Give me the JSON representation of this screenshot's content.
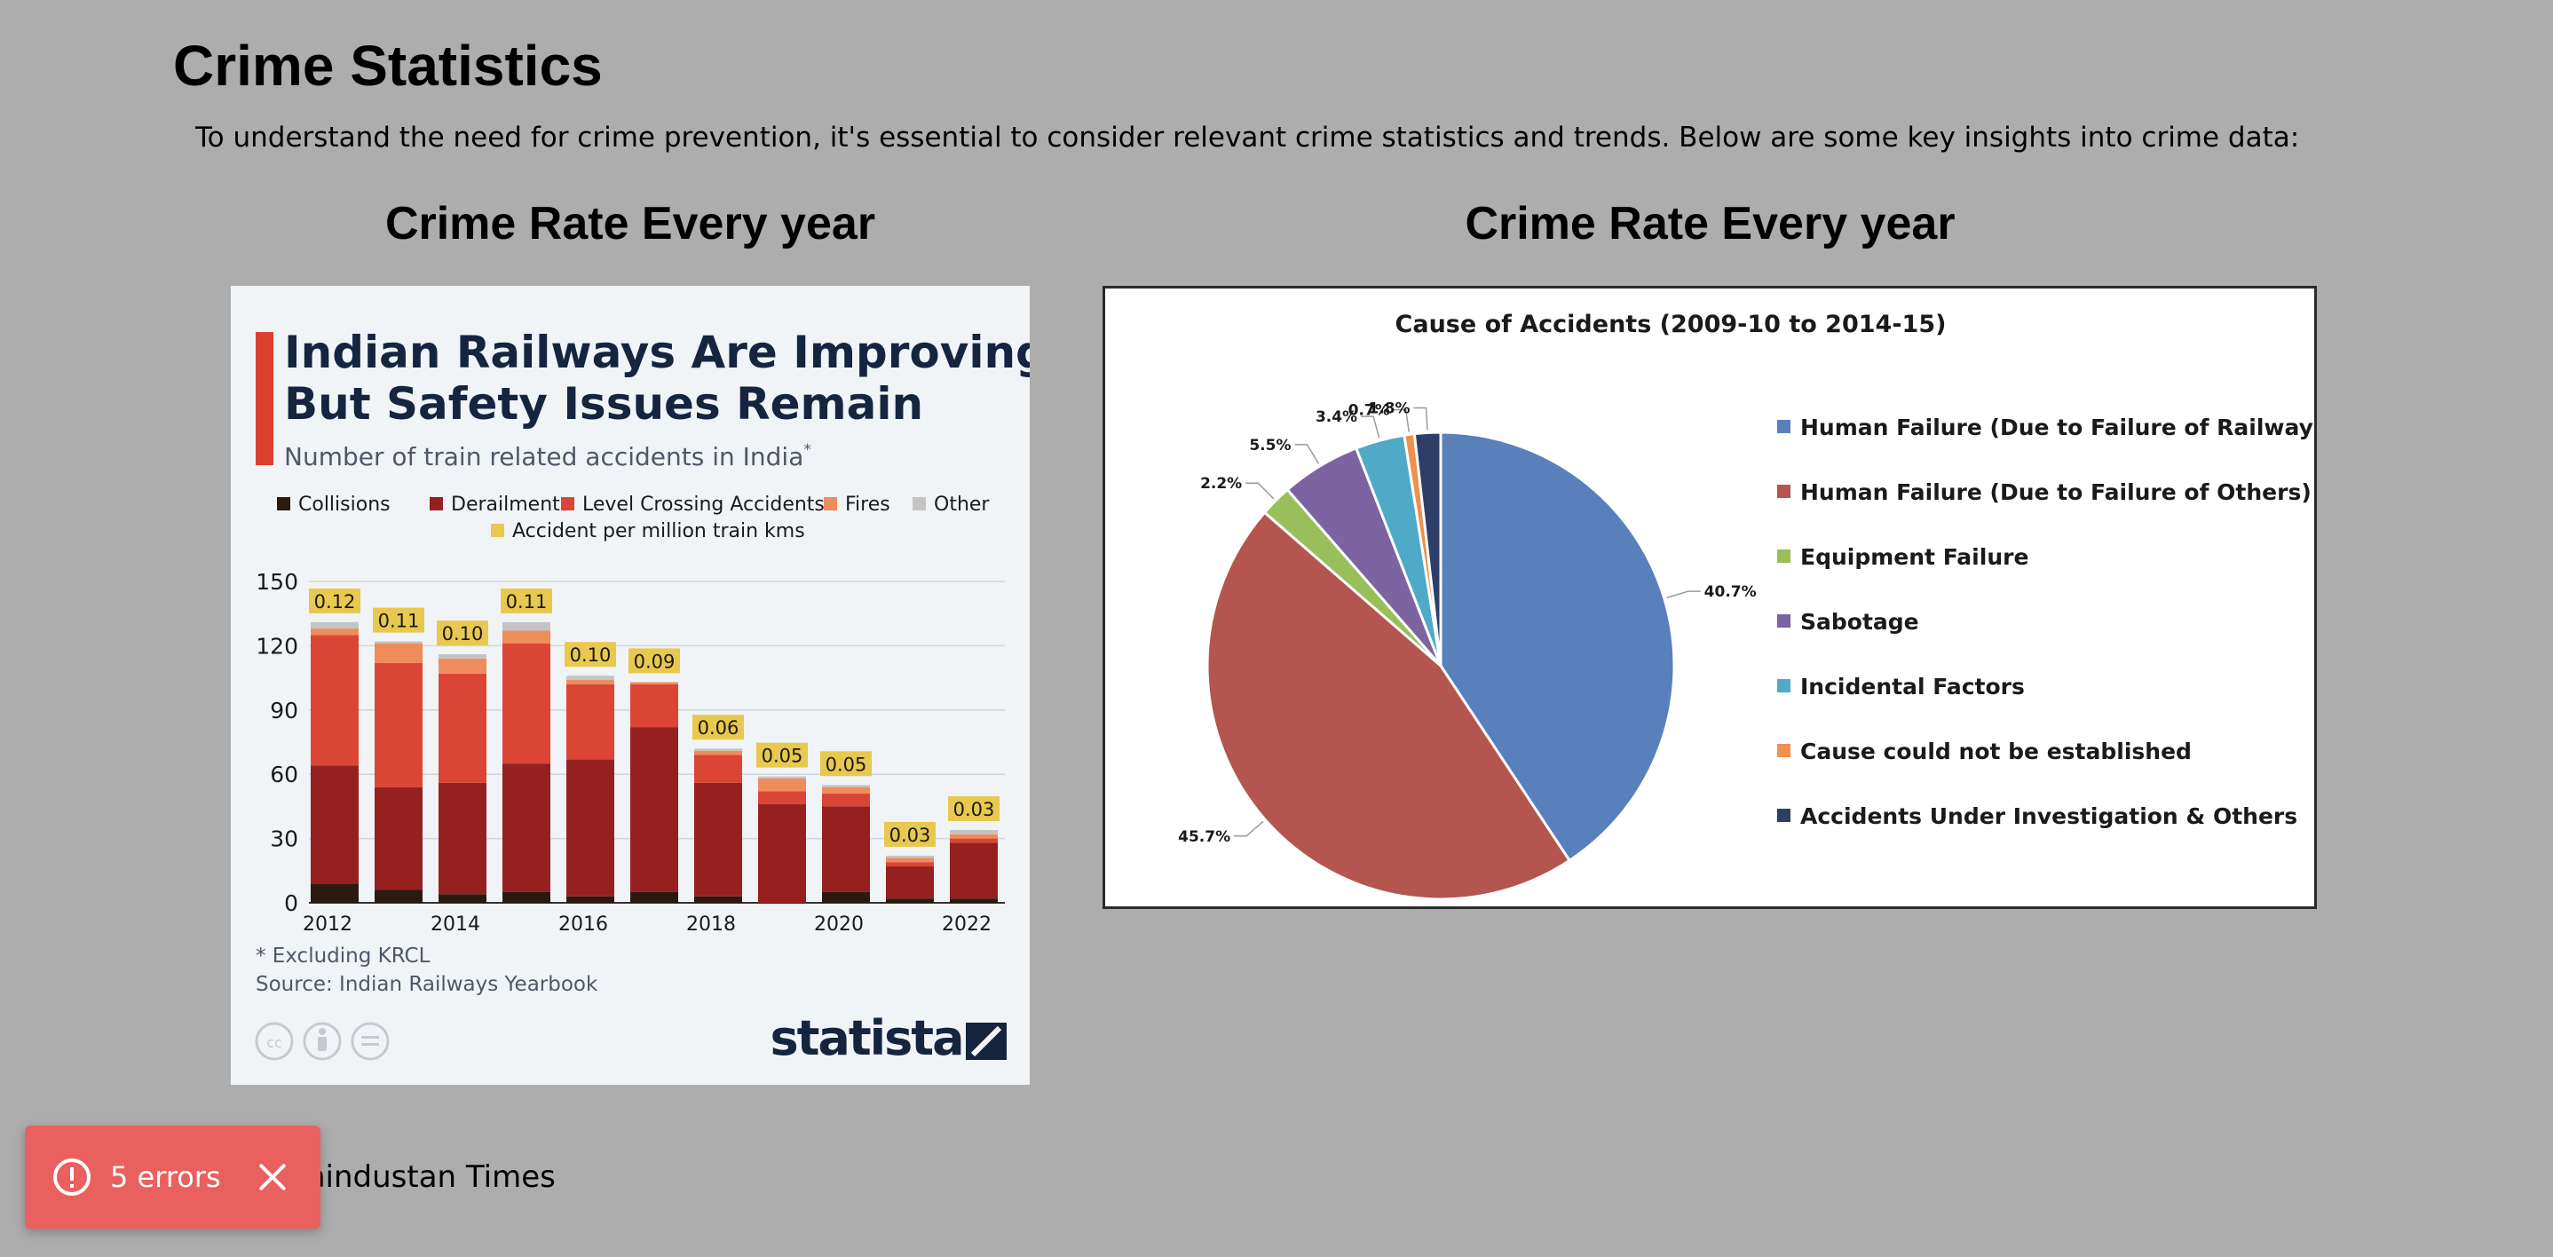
{
  "page": {
    "title": "Crime Statistics",
    "intro": "To understand the need for crime prevention, it's essential to consider relevant crime statistics and trends. Below are some key insights into crime data:",
    "left_heading": "Crime Rate Every year",
    "right_heading": "Crime Rate Every year",
    "source_text": "hindustan Times"
  },
  "toast": {
    "label": "5 errors",
    "color": "#e9605e",
    "icon": "alert-circle-icon",
    "close_icon": "close-icon"
  },
  "statista": {
    "title_line1": "Indian Railways Are Improving,",
    "title_line2": "But Safety Issues Remain",
    "subtitle": "Number of train related accidents in India",
    "subtitle_mark": "*",
    "footnote": "* Excluding KRCL",
    "source": "Source: Indian Railways Yearbook",
    "brand": "statista",
    "license_icons": [
      "cc-icon",
      "attribution-icon",
      "no-derivatives-icon"
    ]
  },
  "chart_data": [
    {
      "type": "bar",
      "stacked": true,
      "title": "Indian Railways Are Improving, But Safety Issues Remain",
      "subtitle": "Number of train related accidents in India*",
      "categories": [
        "2012",
        "2013",
        "2014",
        "2015",
        "2016",
        "2017",
        "2018",
        "2019",
        "2020",
        "2021",
        "2022"
      ],
      "x_tick_labels": [
        "2012",
        "2014",
        "2016",
        "2018",
        "2020",
        "2022"
      ],
      "ylim": [
        0,
        150
      ],
      "y_ticks": [
        0,
        30,
        60,
        90,
        120,
        150
      ],
      "grid": true,
      "legend_position": "top",
      "series": [
        {
          "name": "Collisions",
          "color": "#2b1a10",
          "values": [
            9,
            6,
            4,
            5,
            3,
            5,
            3,
            0,
            5,
            2,
            2
          ]
        },
        {
          "name": "Derailments",
          "color": "#962020",
          "values": [
            55,
            48,
            52,
            60,
            64,
            77,
            53,
            46,
            40,
            15,
            26
          ]
        },
        {
          "name": "Level Crossing Accidents",
          "color": "#db4536",
          "values": [
            61,
            58,
            51,
            56,
            35,
            20,
            13,
            6,
            6,
            2,
            2
          ]
        },
        {
          "name": "Fires",
          "color": "#ef8c5c",
          "values": [
            3,
            9,
            7,
            6,
            2,
            1,
            2,
            6,
            3,
            2,
            2
          ]
        },
        {
          "name": "Other",
          "color": "#c4c4c4",
          "values": [
            3,
            1,
            2,
            4,
            2,
            0,
            1,
            1,
            1,
            1,
            2
          ]
        }
      ],
      "labels_series": {
        "name": "Accident per million train kms",
        "color": "#e8c84e",
        "values": [
          "0.12",
          "0.11",
          "0.10",
          "0.11",
          "0.10",
          "0.09",
          "0.06",
          "0.05",
          "0.05",
          "0.03",
          "0.03"
        ]
      }
    },
    {
      "type": "pie",
      "title": "Cause of Accidents (2009-10 to 2014-15)",
      "legend_position": "right",
      "slices": [
        {
          "label": "Human Failure (Due to Failure of Railway Staff)",
          "value": 40.7,
          "value_label": "40.7%",
          "color": "#5a80bb"
        },
        {
          "label": "Human Failure (Due to Failure of Others)",
          "value": 45.7,
          "value_label": "45.7%",
          "color": "#b45550"
        },
        {
          "label": "Equipment Failure",
          "value": 2.2,
          "value_label": "2.2%",
          "color": "#98bf5a"
        },
        {
          "label": "Sabotage",
          "value": 5.5,
          "value_label": "5.5%",
          "color": "#7c63a1"
        },
        {
          "label": "Incidental Factors",
          "value": 3.4,
          "value_label": "3.4%",
          "color": "#4eaac6"
        },
        {
          "label": "Cause could not be established",
          "value": 0.7,
          "value_label": "0.7%",
          "color": "#f08f4e"
        },
        {
          "label": "Accidents Under Investigation & Others",
          "value": 1.8,
          "value_label": "1.8%",
          "color": "#2d3f66"
        }
      ]
    }
  ]
}
